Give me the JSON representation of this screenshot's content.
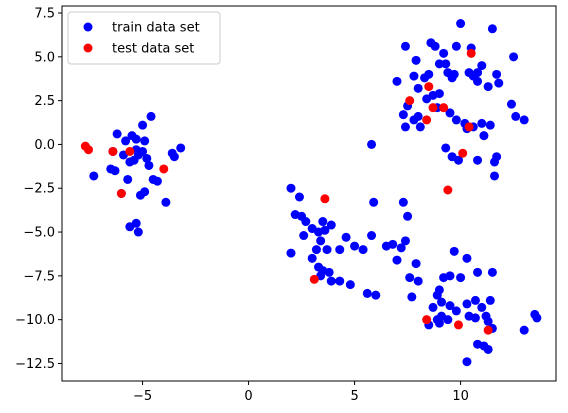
{
  "chart_data": {
    "type": "scatter",
    "title": "",
    "xlabel": "",
    "ylabel": "",
    "xlim": [
      -8.8,
      14.5
    ],
    "ylim": [
      -13.5,
      7.9
    ],
    "xticks": [
      -5,
      0,
      5,
      10
    ],
    "xtick_labels": [
      "−5",
      "0",
      "5",
      "10"
    ],
    "yticks": [
      -12.5,
      -10.0,
      -7.5,
      -5.0,
      -2.5,
      0.0,
      2.5,
      5.0,
      7.5
    ],
    "ytick_labels": [
      "−12.5",
      "−10.0",
      "−7.5",
      "−5.0",
      "−2.5",
      "0.0",
      "2.5",
      "5.0",
      "7.5"
    ],
    "grid": false,
    "legend_position": "top-left",
    "series": [
      {
        "name": "train data set",
        "color": "#0000ff",
        "points": [
          [
            -6.2,
            0.6
          ],
          [
            -5.8,
            0.2
          ],
          [
            -5.5,
            0.5
          ],
          [
            -5.3,
            0.3
          ],
          [
            -5.0,
            1.1
          ],
          [
            -4.6,
            1.6
          ],
          [
            -4.9,
            0.2
          ],
          [
            -6.4,
            -0.4
          ],
          [
            -5.9,
            -0.6
          ],
          [
            -5.6,
            -1.0
          ],
          [
            -5.4,
            -0.9
          ],
          [
            -5.2,
            -0.6
          ],
          [
            -5.0,
            -0.4
          ],
          [
            -4.8,
            -0.8
          ],
          [
            -4.7,
            -1.2
          ],
          [
            -4.5,
            -2.0
          ],
          [
            -4.3,
            -2.1
          ],
          [
            -5.7,
            -2.0
          ],
          [
            -6.0,
            -2.8
          ],
          [
            -6.5,
            -1.4
          ],
          [
            -6.3,
            -1.5
          ],
          [
            -7.3,
            -1.8
          ],
          [
            -5.1,
            -2.9
          ],
          [
            -4.9,
            -2.7
          ],
          [
            -5.6,
            -4.7
          ],
          [
            -5.3,
            -4.5
          ],
          [
            -5.2,
            -5.0
          ],
          [
            -3.9,
            -3.3
          ],
          [
            -3.6,
            -0.5
          ],
          [
            -3.5,
            -0.7
          ],
          [
            -3.2,
            -0.2
          ],
          [
            -5.3,
            -0.3
          ],
          [
            2.0,
            -2.5
          ],
          [
            2.4,
            -3.0
          ],
          [
            2.2,
            -4.0
          ],
          [
            2.5,
            -4.1
          ],
          [
            2.6,
            -5.2
          ],
          [
            2.7,
            -4.4
          ],
          [
            3.0,
            -4.8
          ],
          [
            3.3,
            -5.0
          ],
          [
            3.5,
            -4.4
          ],
          [
            3.6,
            -4.9
          ],
          [
            3.9,
            -4.6
          ],
          [
            3.4,
            -5.5
          ],
          [
            3.2,
            -6.0
          ],
          [
            3.7,
            -6.0
          ],
          [
            3.0,
            -6.5
          ],
          [
            3.3,
            -7.0
          ],
          [
            3.5,
            -7.2
          ],
          [
            3.4,
            -7.5
          ],
          [
            3.8,
            -7.3
          ],
          [
            3.9,
            -7.8
          ],
          [
            4.3,
            -7.8
          ],
          [
            2.0,
            -6.2
          ],
          [
            4.6,
            -5.3
          ],
          [
            4.3,
            -6.0
          ],
          [
            5.0,
            -5.8
          ],
          [
            5.4,
            -6.0
          ],
          [
            5.8,
            -5.2
          ],
          [
            5.9,
            -3.3
          ],
          [
            6.5,
            -5.8
          ],
          [
            6.8,
            -5.7
          ],
          [
            7.0,
            -6.6
          ],
          [
            7.2,
            -5.9
          ],
          [
            7.4,
            -5.5
          ],
          [
            7.3,
            -3.3
          ],
          [
            7.5,
            -4.1
          ],
          [
            5.6,
            -8.5
          ],
          [
            6.0,
            -8.6
          ],
          [
            4.8,
            -8.0
          ],
          [
            7.6,
            -7.6
          ],
          [
            7.7,
            -8.7
          ],
          [
            8.0,
            -7.8
          ],
          [
            7.9,
            -6.8
          ],
          [
            5.8,
            0.0
          ],
          [
            7.0,
            3.6
          ],
          [
            7.4,
            5.6
          ],
          [
            7.8,
            3.9
          ],
          [
            7.9,
            4.8
          ],
          [
            8.0,
            3.2
          ],
          [
            8.3,
            3.8
          ],
          [
            8.5,
            4.0
          ],
          [
            8.6,
            5.8
          ],
          [
            8.8,
            5.6
          ],
          [
            9.0,
            4.6
          ],
          [
            9.3,
            4.6
          ],
          [
            9.2,
            5.2
          ],
          [
            9.4,
            4.1
          ],
          [
            9.6,
            3.8
          ],
          [
            9.7,
            4.0
          ],
          [
            9.8,
            5.6
          ],
          [
            10.0,
            6.9
          ],
          [
            10.4,
            4.1
          ],
          [
            10.6,
            3.9
          ],
          [
            10.8,
            3.6
          ],
          [
            11.0,
            4.5
          ],
          [
            11.3,
            3.3
          ],
          [
            11.5,
            6.6
          ],
          [
            11.7,
            4.0
          ],
          [
            11.8,
            3.5
          ],
          [
            12.5,
            5.0
          ],
          [
            12.4,
            2.3
          ],
          [
            12.6,
            1.6
          ],
          [
            13.0,
            1.4
          ],
          [
            10.5,
            5.5
          ],
          [
            10.8,
            4.1
          ],
          [
            9.0,
            2.9
          ],
          [
            7.5,
            2.2
          ],
          [
            7.3,
            1.7
          ],
          [
            7.8,
            1.4
          ],
          [
            7.4,
            1.0
          ],
          [
            8.0,
            1.6
          ],
          [
            8.4,
            2.6
          ],
          [
            8.7,
            2.8
          ],
          [
            8.9,
            2.1
          ],
          [
            9.5,
            1.8
          ],
          [
            9.8,
            1.4
          ],
          [
            10.2,
            1.2
          ],
          [
            10.3,
            0.9
          ],
          [
            10.6,
            1.0
          ],
          [
            11.0,
            1.2
          ],
          [
            11.4,
            1.1
          ],
          [
            11.1,
            0.5
          ],
          [
            9.3,
            -0.2
          ],
          [
            9.6,
            -0.7
          ],
          [
            9.9,
            -0.9
          ],
          [
            10.8,
            -0.9
          ],
          [
            11.7,
            -0.7
          ],
          [
            11.6,
            -1.0
          ],
          [
            11.6,
            -1.8
          ],
          [
            8.1,
            1.0
          ],
          [
            9.7,
            -6.1
          ],
          [
            10.3,
            -6.5
          ],
          [
            9.2,
            -7.6
          ],
          [
            9.5,
            -7.5
          ],
          [
            10.0,
            -7.6
          ],
          [
            10.8,
            -7.3
          ],
          [
            11.5,
            -7.3
          ],
          [
            9.0,
            -8.3
          ],
          [
            8.9,
            -8.6
          ],
          [
            9.1,
            -9.0
          ],
          [
            9.5,
            -9.2
          ],
          [
            9.8,
            -9.5
          ],
          [
            10.3,
            -9.1
          ],
          [
            10.7,
            -8.9
          ],
          [
            11.0,
            -9.3
          ],
          [
            11.2,
            -9.8
          ],
          [
            11.4,
            -8.9
          ],
          [
            8.5,
            -10.3
          ],
          [
            8.9,
            -10.0
          ],
          [
            9.0,
            -10.2
          ],
          [
            9.4,
            -10.0
          ],
          [
            10.4,
            -9.8
          ],
          [
            10.7,
            -9.9
          ],
          [
            11.3,
            -10.1
          ],
          [
            11.5,
            -10.5
          ],
          [
            13.0,
            -10.6
          ],
          [
            13.5,
            -9.7
          ],
          [
            13.6,
            -9.9
          ],
          [
            10.8,
            -11.4
          ],
          [
            11.1,
            -11.5
          ],
          [
            11.3,
            -11.7
          ],
          [
            10.3,
            -12.4
          ],
          [
            8.7,
            -9.3
          ],
          [
            9.1,
            -9.8
          ]
        ]
      },
      {
        "name": "test data set",
        "color": "#ff0000",
        "points": [
          [
            -7.7,
            -0.1
          ],
          [
            -7.55,
            -0.3
          ],
          [
            -6.4,
            -0.4
          ],
          [
            -5.6,
            -0.4
          ],
          [
            -4.0,
            -1.4
          ],
          [
            -6.0,
            -2.8
          ],
          [
            3.6,
            -3.1
          ],
          [
            3.1,
            -7.7
          ],
          [
            7.6,
            2.5
          ],
          [
            8.5,
            3.3
          ],
          [
            8.4,
            1.4
          ],
          [
            8.7,
            2.1
          ],
          [
            9.2,
            2.1
          ],
          [
            10.1,
            -0.5
          ],
          [
            9.4,
            -2.6
          ],
          [
            10.4,
            1.0
          ],
          [
            10.5,
            5.2
          ],
          [
            8.4,
            -10.0
          ],
          [
            9.9,
            -10.3
          ],
          [
            11.3,
            -10.6
          ]
        ]
      }
    ]
  }
}
